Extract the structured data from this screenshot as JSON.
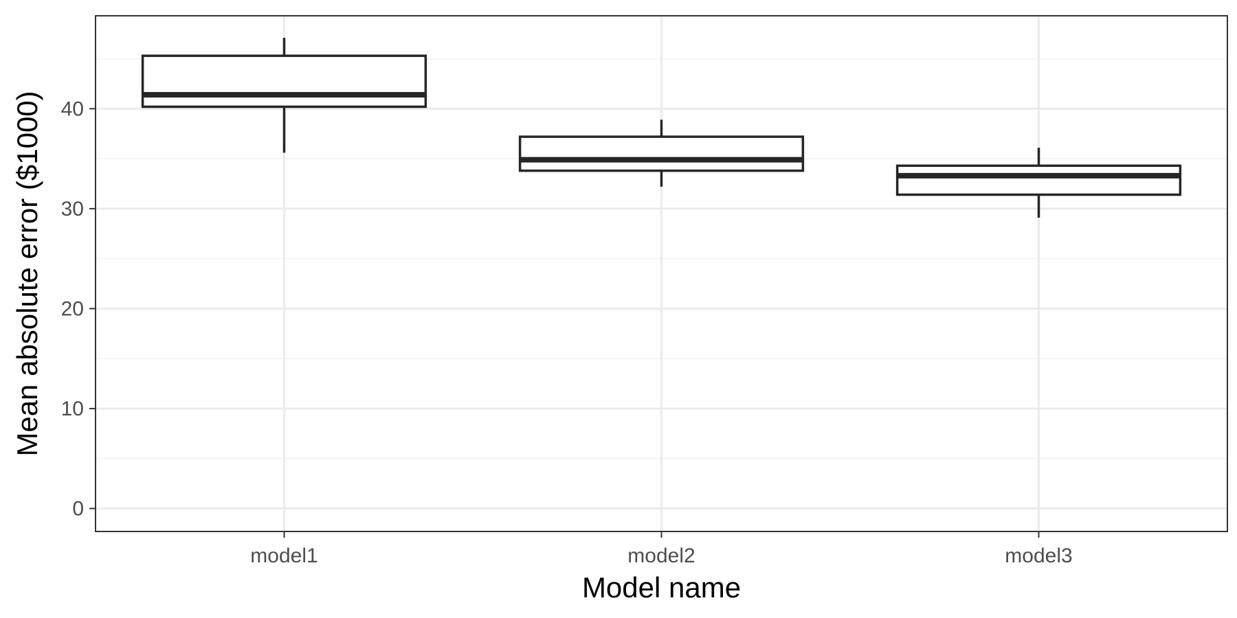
{
  "chart_data": {
    "type": "box",
    "xlabel": "Model name",
    "ylabel": "Mean absolute error ($1000)",
    "categories": [
      "model1",
      "model2",
      "model3"
    ],
    "boxes": [
      {
        "category": "model1",
        "whisker_low": 35.6,
        "q1": 40.2,
        "median": 41.4,
        "q3": 45.3,
        "whisker_high": 47.1
      },
      {
        "category": "model2",
        "whisker_low": 32.2,
        "q1": 33.8,
        "median": 34.9,
        "q3": 37.2,
        "whisker_high": 38.9
      },
      {
        "category": "model3",
        "whisker_low": 29.1,
        "q1": 31.4,
        "median": 33.3,
        "q3": 34.3,
        "whisker_high": 36.1
      }
    ],
    "ylim": [
      -2.3,
      49.3
    ],
    "yticks": [
      0,
      10,
      20,
      30,
      40
    ],
    "yticks_minor": [
      5,
      15,
      25,
      35,
      45
    ],
    "grid": true,
    "style": {
      "box_stroke": "#262626",
      "grid_major": "#ebebeb",
      "grid_minor": "#f2f2f2",
      "panel_border": "#333333",
      "background": "#ffffff"
    }
  }
}
